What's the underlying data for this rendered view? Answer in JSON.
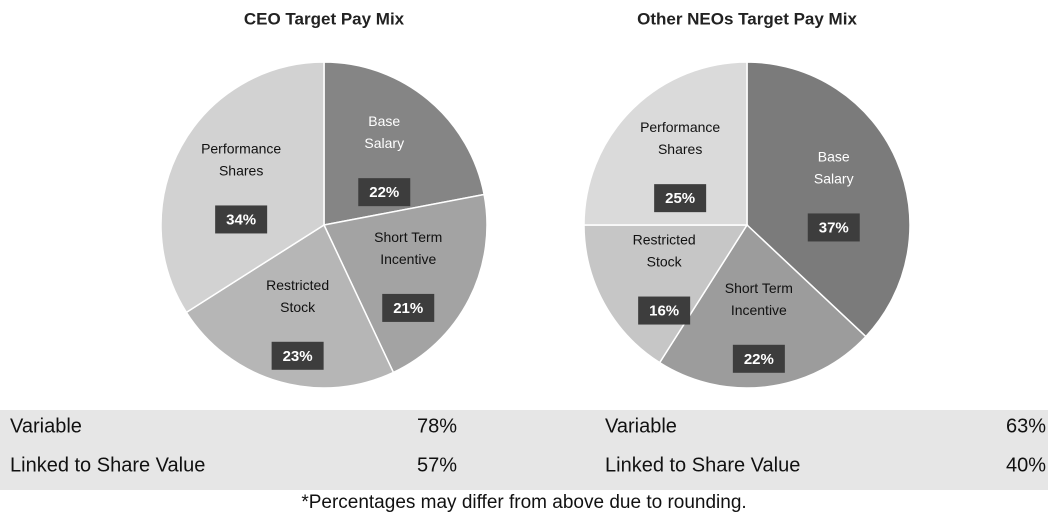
{
  "chart_data": [
    {
      "type": "pie",
      "title": "CEO Target Pay Mix",
      "categories": [
        "Base Salary",
        "Short Term Incentive",
        "Restricted Stock",
        "Performance Shares"
      ],
      "values": [
        22,
        21,
        23,
        34
      ],
      "value_labels": [
        "22%",
        "21%",
        "23%",
        "34%"
      ],
      "colors": [
        "#858585",
        "#a3a3a3",
        "#b6b6b6",
        "#d2d2d2"
      ]
    },
    {
      "type": "pie",
      "title": "Other NEOs Target Pay Mix",
      "categories": [
        "Base Salary",
        "Short Term Incentive",
        "Restricted Stock",
        "Performance Shares"
      ],
      "values": [
        37,
        22,
        16,
        25
      ],
      "value_labels": [
        "37%",
        "22%",
        "16%",
        "25%"
      ],
      "colors": [
        "#7b7b7b",
        "#9c9c9c",
        "#c6c6c6",
        "#dadada"
      ]
    }
  ],
  "summary": [
    {
      "rows": [
        [
          "Variable",
          "78%"
        ],
        [
          "Linked to Share Value",
          "57%"
        ]
      ]
    },
    {
      "rows": [
        [
          "Variable",
          "63%"
        ],
        [
          "Linked to Share Value",
          "40%"
        ]
      ]
    }
  ],
  "note": "*Percentages may differ from above due to rounding."
}
